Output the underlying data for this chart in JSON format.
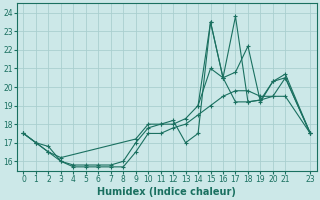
{
  "xlabel": "Humidex (Indice chaleur)",
  "xlim": [
    -0.5,
    23.5
  ],
  "ylim": [
    15.5,
    24.5
  ],
  "yticks": [
    16,
    17,
    18,
    19,
    20,
    21,
    22,
    23,
    24
  ],
  "xticks": [
    0,
    1,
    2,
    3,
    4,
    5,
    6,
    7,
    8,
    9,
    10,
    11,
    12,
    13,
    14,
    15,
    16,
    17,
    18,
    19,
    20,
    21,
    23
  ],
  "bg_color": "#cce8e8",
  "grid_color": "#aacfcf",
  "line_color": "#1a7060",
  "line1_x": [
    0,
    1,
    2,
    3,
    4,
    5,
    6,
    7,
    8,
    9,
    10,
    11,
    12,
    13,
    14,
    15,
    16,
    17,
    18,
    19,
    20,
    21,
    23
  ],
  "line1_y": [
    17.5,
    17.0,
    16.8,
    16.0,
    15.7,
    15.7,
    15.7,
    15.7,
    15.7,
    16.5,
    17.5,
    17.5,
    17.8,
    18.0,
    18.5,
    19.0,
    19.5,
    19.8,
    19.8,
    19.5,
    19.5,
    20.5,
    17.5
  ],
  "line2_x": [
    0,
    1,
    2,
    3,
    4,
    5,
    6,
    7,
    8,
    9,
    10,
    11,
    12,
    13,
    14,
    15,
    16,
    17,
    18,
    19,
    20,
    21,
    23
  ],
  "line2_y": [
    17.5,
    17.0,
    16.5,
    16.0,
    15.8,
    15.8,
    15.8,
    15.8,
    16.0,
    17.0,
    17.8,
    18.0,
    18.0,
    18.3,
    19.0,
    21.0,
    20.5,
    19.2,
    19.2,
    19.3,
    19.5,
    19.5,
    17.5
  ],
  "line3_x": [
    0,
    1,
    2,
    3,
    9,
    10,
    11,
    12,
    13,
    14,
    15,
    16,
    17,
    18,
    19,
    20,
    21,
    23
  ],
  "line3_y": [
    17.5,
    17.0,
    16.5,
    16.2,
    17.2,
    18.0,
    18.0,
    18.2,
    17.0,
    17.5,
    23.5,
    20.5,
    20.8,
    22.2,
    19.2,
    20.3,
    20.7,
    17.5
  ],
  "line4_x": [
    14,
    15,
    16,
    17,
    18,
    19,
    20,
    21,
    23
  ],
  "line4_y": [
    19.0,
    23.5,
    20.5,
    23.8,
    19.2,
    19.3,
    20.3,
    20.5,
    17.5
  ]
}
